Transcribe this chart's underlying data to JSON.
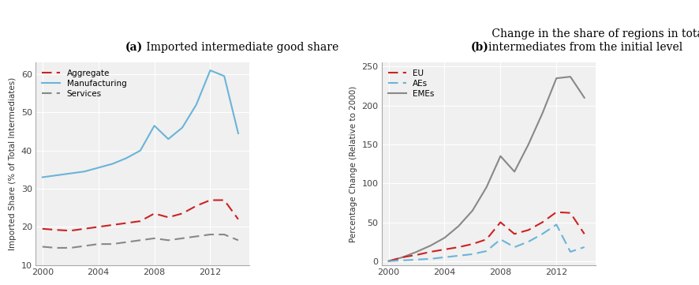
{
  "years_a": [
    2000,
    2001,
    2002,
    2003,
    2004,
    2005,
    2006,
    2007,
    2008,
    2009,
    2010,
    2011,
    2012,
    2013,
    2014
  ],
  "manufacturing": [
    33,
    33.5,
    34,
    34.5,
    35.5,
    36.5,
    38,
    40,
    46.5,
    43,
    46,
    52,
    61,
    59.5,
    44.5
  ],
  "aggregate": [
    19.5,
    19.2,
    19.0,
    19.5,
    20.0,
    20.5,
    21.0,
    21.5,
    23.5,
    22.5,
    23.5,
    25.5,
    27,
    27,
    22
  ],
  "services": [
    14.8,
    14.5,
    14.5,
    15.0,
    15.5,
    15.5,
    16.0,
    16.5,
    17.0,
    16.5,
    17.0,
    17.5,
    18.0,
    18.0,
    16.5
  ],
  "years_b": [
    2000,
    2001,
    2002,
    2003,
    2004,
    2005,
    2006,
    2007,
    2008,
    2009,
    2010,
    2011,
    2012,
    2013,
    2014
  ],
  "eu": [
    0,
    5,
    8,
    12,
    15,
    18,
    22,
    28,
    50,
    35,
    40,
    50,
    63,
    62,
    35
  ],
  "aes": [
    0,
    1,
    2,
    3,
    5,
    7,
    9,
    13,
    28,
    18,
    25,
    35,
    47,
    12,
    18
  ],
  "emes": [
    0,
    5,
    12,
    20,
    30,
    45,
    65,
    95,
    135,
    115,
    150,
    190,
    235,
    237,
    210
  ],
  "ylabel_a": "Imported Share (% of Total Intermediates)",
  "ylabel_b": "Percentage Change (Relative to 2000)",
  "ylim_a": [
    10,
    63
  ],
  "ylim_b": [
    -5,
    255
  ],
  "yticks_a": [
    10,
    20,
    30,
    40,
    50,
    60
  ],
  "yticks_b": [
    0,
    50,
    100,
    150,
    200,
    250
  ],
  "xticks": [
    2000,
    2004,
    2008,
    2012
  ],
  "color_aggregate": "#cc2222",
  "color_manufacturing": "#6ab4d8",
  "color_services": "#888888",
  "color_eu": "#cc2222",
  "color_aes": "#6ab4d8",
  "color_emes": "#888888",
  "bg_color": "#f0f0f0",
  "grid_color": "#ffffff",
  "bold_label_a": "(a)",
  "bold_label_b": "(b)",
  "regular_title_a": " Imported intermediate good share",
  "regular_title_b": " Change in the share of regions in total\nintermediates from the initial level"
}
